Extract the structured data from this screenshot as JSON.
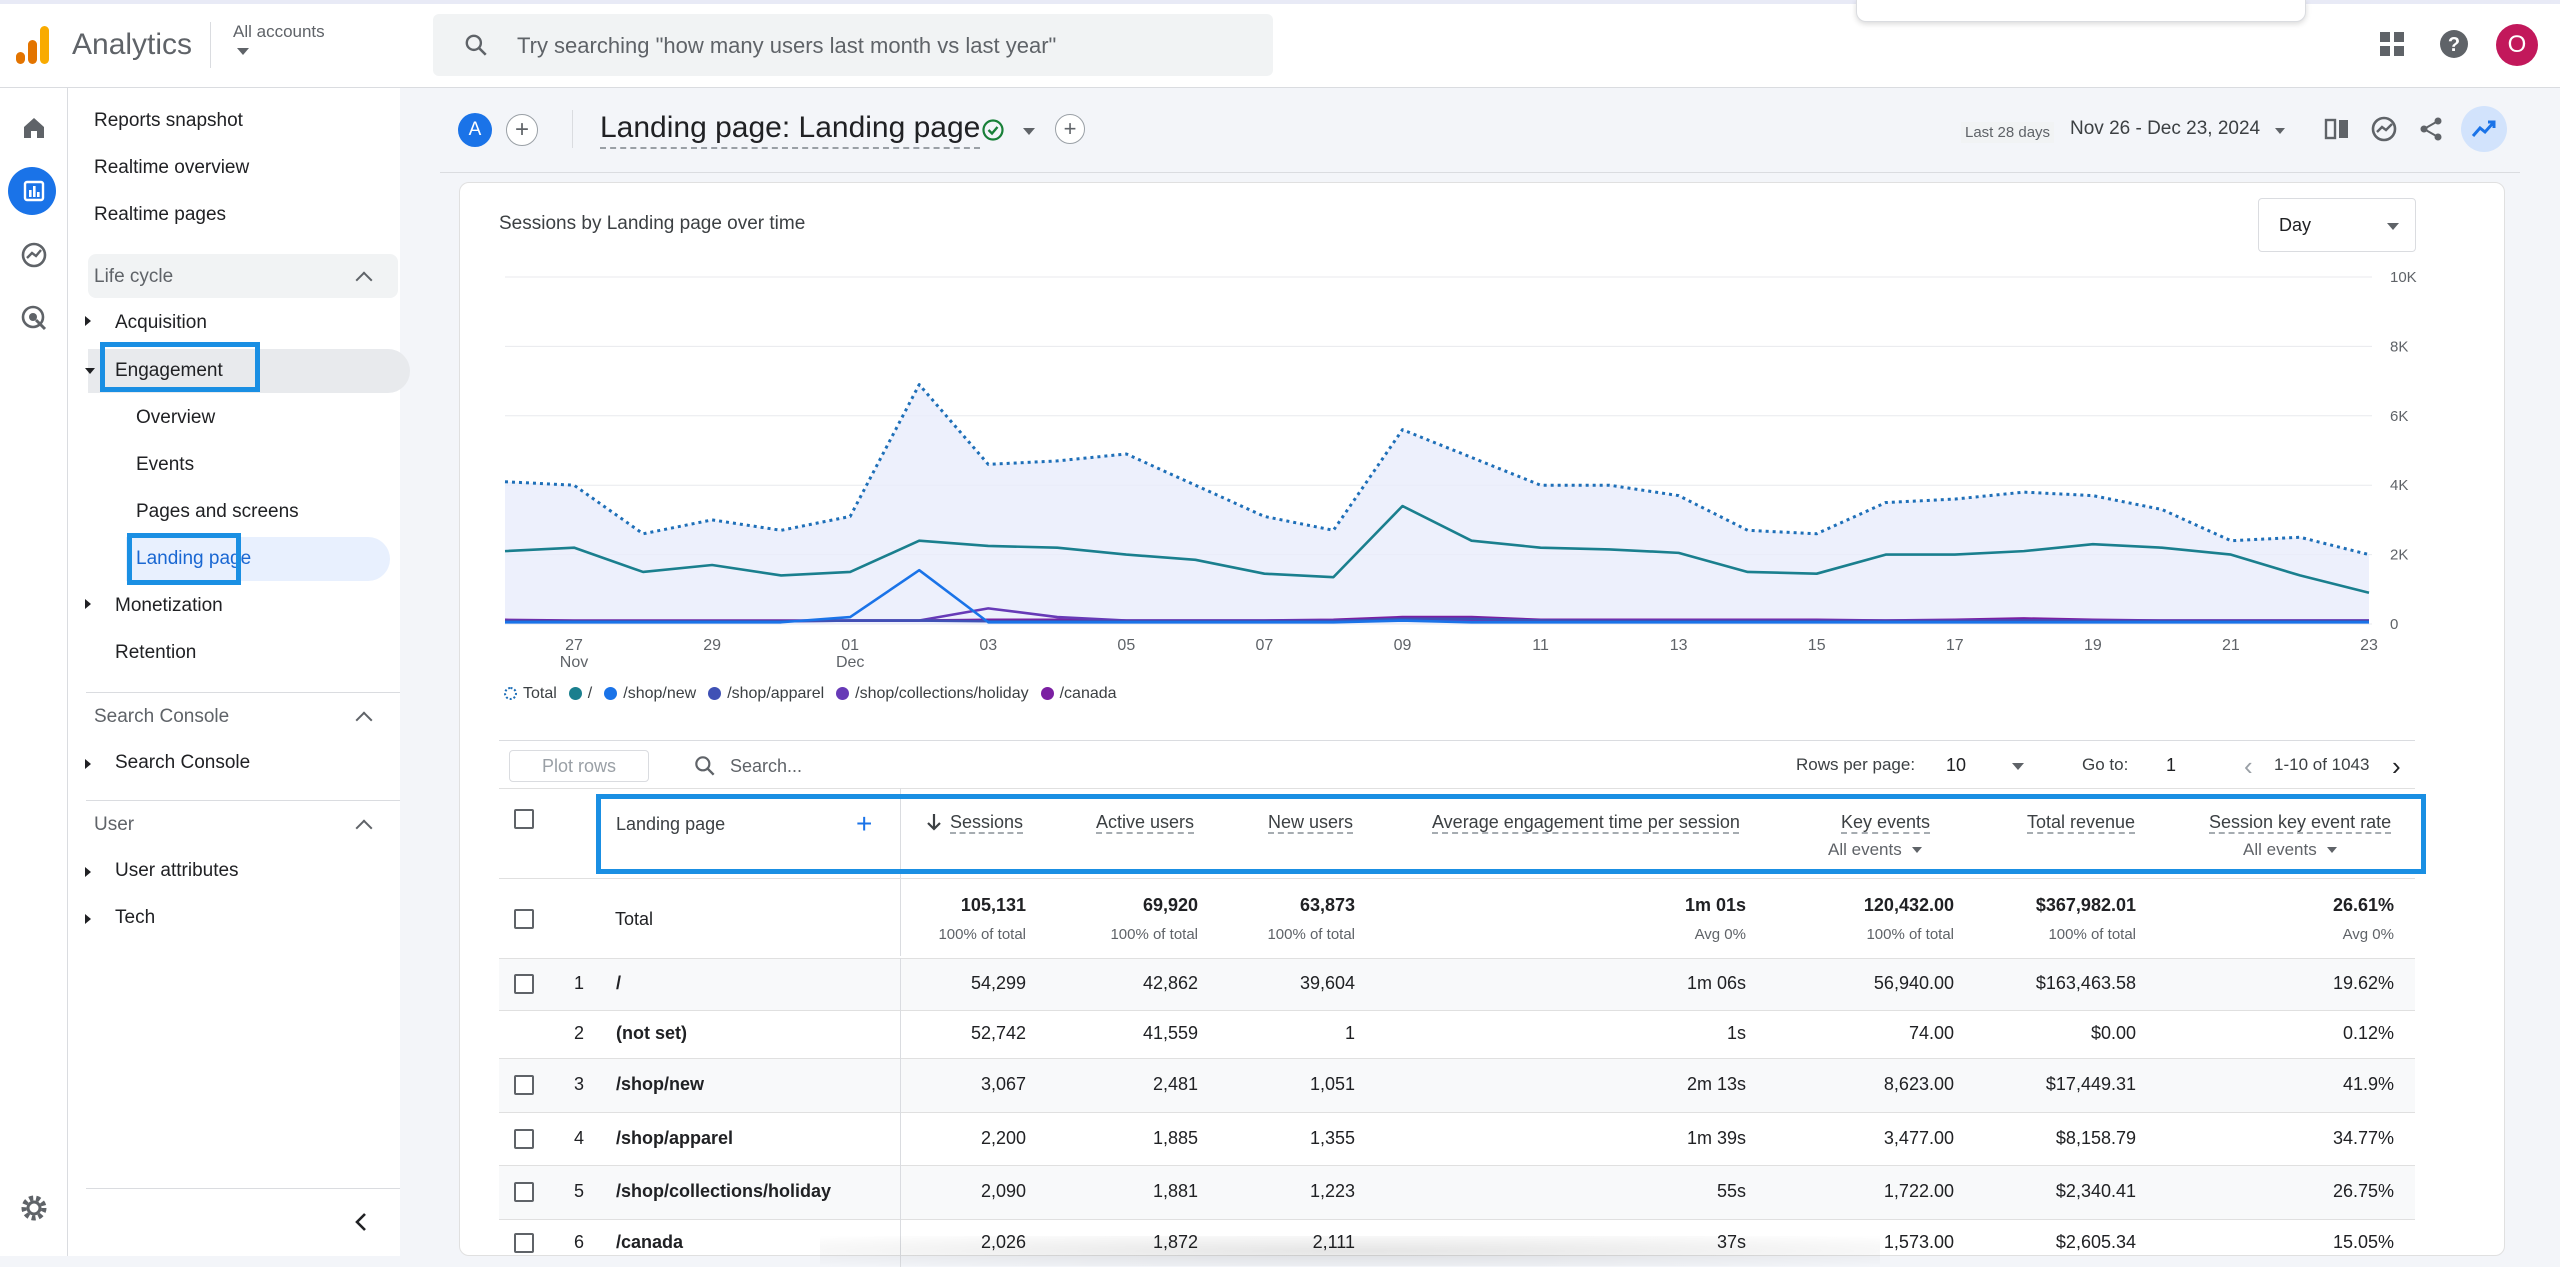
{
  "topbar": {
    "app_title": "Analytics",
    "account_label": "All accounts",
    "search_placeholder": "Try searching \"how many users last month vs last year\"",
    "avatar_letter": "O",
    "icons": [
      "apps-grid-icon",
      "help-icon"
    ]
  },
  "rail": {
    "icons": [
      "home-icon",
      "reports-icon",
      "explore-icon",
      "advertising-icon",
      "settings-icon"
    ]
  },
  "sidebar": {
    "top_items": [
      "Reports snapshot",
      "Realtime overview",
      "Realtime pages"
    ],
    "lifecycle": {
      "header": "Life cycle",
      "acquisition": "Acquisition",
      "engagement": "Engagement",
      "engagement_children": [
        "Overview",
        "Events",
        "Pages and screens",
        "Landing page"
      ],
      "monetization": "Monetization",
      "retention": "Retention"
    },
    "search_console": {
      "header": "Search Console",
      "item": "Search Console"
    },
    "user": {
      "header": "User",
      "items": [
        "User attributes",
        "Tech"
      ]
    }
  },
  "header": {
    "segment_letter": "A",
    "title": "Landing page: Landing page",
    "date_label": "Last 28 days",
    "date_range": "Nov 26 - Dec 23, 2024"
  },
  "chart_card": {
    "granularity": "Day"
  },
  "colors": {
    "total": "#1e6fb8",
    "root": "#1a7f8e",
    "shop_new": "#1a73e8",
    "shop_apparel": "#3f51b5",
    "holiday": "#673ab7",
    "canada": "#7b1fa2",
    "highlight": "#1a8fe3"
  },
  "chart_data": {
    "type": "line",
    "title": "Sessions by Landing page over time",
    "ylim": [
      0,
      10000
    ],
    "y_ticks": [
      "10K",
      "8K",
      "6K",
      "4K",
      "2K",
      "0"
    ],
    "y_tick_values": [
      10000,
      8000,
      6000,
      4000,
      2000,
      0
    ],
    "x_tick_labels": [
      {
        "day": 27,
        "label": "27",
        "sub": "Nov"
      },
      {
        "day": 29,
        "label": "29"
      },
      {
        "day": 31,
        "label": "01",
        "sub": "Dec"
      },
      {
        "day": 33,
        "label": "03"
      },
      {
        "day": 35,
        "label": "05"
      },
      {
        "day": 37,
        "label": "07"
      },
      {
        "day": 39,
        "label": "09"
      },
      {
        "day": 41,
        "label": "11"
      },
      {
        "day": 43,
        "label": "13"
      },
      {
        "day": 45,
        "label": "15"
      },
      {
        "day": 47,
        "label": "17"
      },
      {
        "day": 49,
        "label": "19"
      },
      {
        "day": 51,
        "label": "21"
      },
      {
        "day": 53,
        "label": "23"
      }
    ],
    "series": [
      {
        "name": "Total",
        "style": "dotted",
        "values": [
          4100,
          4000,
          2600,
          3000,
          2700,
          3100,
          6900,
          4600,
          4700,
          4900,
          4000,
          3100,
          2700,
          5600,
          4800,
          4000,
          4000,
          3700,
          2700,
          2600,
          3500,
          3600,
          3800,
          3700,
          3300,
          2400,
          2500,
          2000
        ]
      },
      {
        "name": "/",
        "style": "solid",
        "values": [
          2100,
          2200,
          1500,
          1700,
          1400,
          1500,
          2400,
          2250,
          2200,
          2000,
          1850,
          1450,
          1350,
          3400,
          2400,
          2200,
          2150,
          2050,
          1500,
          1450,
          2000,
          2000,
          2100,
          2300,
          2200,
          2000,
          1400,
          900
        ]
      },
      {
        "name": "/shop/new",
        "style": "solid",
        "values": [
          50,
          50,
          50,
          50,
          50,
          200,
          1550,
          50,
          50,
          50,
          50,
          50,
          50,
          100,
          50,
          50,
          50,
          50,
          50,
          50,
          50,
          50,
          50,
          50,
          50,
          50,
          50,
          50
        ]
      },
      {
        "name": "/shop/apparel",
        "style": "solid",
        "values": [
          80,
          80,
          80,
          80,
          80,
          100,
          100,
          80,
          80,
          80,
          80,
          80,
          80,
          150,
          150,
          100,
          80,
          80,
          80,
          80,
          80,
          80,
          100,
          80,
          80,
          80,
          80,
          80
        ]
      },
      {
        "name": "/shop/collections/holiday",
        "style": "solid",
        "values": [
          100,
          80,
          80,
          80,
          80,
          100,
          100,
          450,
          200,
          100,
          100,
          100,
          100,
          120,
          120,
          100,
          100,
          100,
          100,
          100,
          100,
          100,
          100,
          100,
          100,
          100,
          100,
          100
        ]
      },
      {
        "name": "/canada",
        "style": "solid",
        "values": [
          120,
          100,
          100,
          100,
          100,
          100,
          100,
          120,
          120,
          100,
          100,
          100,
          120,
          200,
          200,
          120,
          120,
          120,
          120,
          120,
          100,
          120,
          160,
          120,
          100,
          100,
          100,
          100
        ]
      }
    ],
    "legend": [
      "Total",
      "/",
      "/shop/new",
      "/shop/apparel",
      "/shop/collections/holiday",
      "/canada"
    ]
  },
  "table": {
    "plot_rows": "Plot rows",
    "search_placeholder": "Search...",
    "rows_per_page_label": "Rows per page:",
    "rows_per_page": "10",
    "goto_label": "Go to:",
    "goto_value": "1",
    "range": "1-10 of 1043",
    "columns": {
      "landing_page": "Landing page",
      "sessions": "Sessions",
      "active_users": "Active users",
      "new_users": "New users",
      "avg_engagement": "Average engagement time per session",
      "key_events": "Key events",
      "key_events_filter": "All events",
      "total_revenue": "Total revenue",
      "session_key_event_rate": "Session key event rate",
      "rate_filter": "All events"
    },
    "total": {
      "label": "Total",
      "sessions": "105,131",
      "sessions_sub": "100% of total",
      "active_users": "69,920",
      "active_users_sub": "100% of total",
      "new_users": "63,873",
      "new_users_sub": "100% of total",
      "avg_engagement": "1m 01s",
      "avg_engagement_sub": "Avg 0%",
      "key_events": "120,432.00",
      "key_events_sub": "100% of total",
      "total_revenue": "$367,982.01",
      "total_revenue_sub": "100% of total",
      "rate": "26.61%",
      "rate_sub": "Avg 0%"
    },
    "rows": [
      {
        "n": "1",
        "page": "/",
        "sessions": "54,299",
        "active": "42,862",
        "new": "39,604",
        "avg": "1m 06s",
        "key": "56,940.00",
        "rev": "$163,463.58",
        "rate": "19.62%"
      },
      {
        "n": "2",
        "page": "(not set)",
        "sessions": "52,742",
        "active": "41,559",
        "new": "1",
        "avg": "1s",
        "key": "74.00",
        "rev": "$0.00",
        "rate": "0.12%"
      },
      {
        "n": "3",
        "page": "/shop/new",
        "sessions": "3,067",
        "active": "2,481",
        "new": "1,051",
        "avg": "2m 13s",
        "key": "8,623.00",
        "rev": "$17,449.31",
        "rate": "41.9%"
      },
      {
        "n": "4",
        "page": "/shop/apparel",
        "sessions": "2,200",
        "active": "1,885",
        "new": "1,355",
        "avg": "1m 39s",
        "key": "3,477.00",
        "rev": "$8,158.79",
        "rate": "34.77%"
      },
      {
        "n": "5",
        "page": "/shop/collections/holiday",
        "sessions": "2,090",
        "active": "1,881",
        "new": "1,223",
        "avg": "55s",
        "key": "1,722.00",
        "rev": "$2,340.41",
        "rate": "26.75%"
      },
      {
        "n": "6",
        "page": "/canada",
        "sessions": "2,026",
        "active": "1,872",
        "new": "2,111",
        "avg": "37s",
        "key": "1,573.00",
        "rev": "$2,605.34",
        "rate": "15.05%"
      }
    ]
  }
}
